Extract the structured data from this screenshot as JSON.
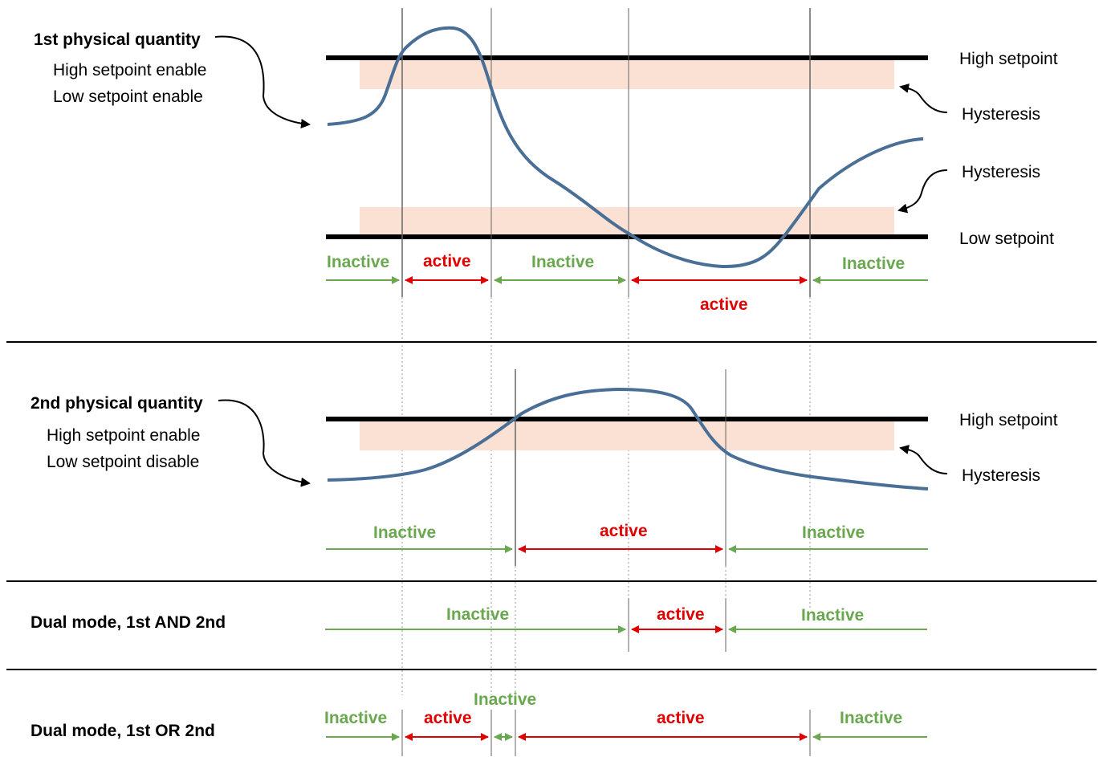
{
  "colors": {
    "curve": "#4a6f96",
    "hysteresis_band": "#fbe1d3",
    "setpoint_line": "#000000",
    "inactive": "#6aa84f",
    "active": "#e00000",
    "divider": "#000000",
    "guide": "#999999"
  },
  "section1": {
    "title": "1st physical quantity",
    "line1": "High setpoint enable",
    "line2": "Low setpoint enable",
    "high_setpoint": "High setpoint",
    "low_setpoint": "Low setpoint",
    "hysteresis_upper": "Hysteresis",
    "hysteresis_lower": "Hysteresis",
    "states": [
      "Inactive",
      "active",
      "Inactive",
      "active",
      "Inactive"
    ]
  },
  "section2": {
    "title": "2nd physical quantity",
    "line1": "High setpoint enable",
    "line2": "Low setpoint disable",
    "high_setpoint": "High setpoint",
    "hysteresis": "Hysteresis",
    "states": [
      "Inactive",
      "active",
      "Inactive"
    ]
  },
  "section3": {
    "title": "Dual mode, 1st AND 2nd",
    "states": [
      "Inactive",
      "active",
      "Inactive"
    ]
  },
  "section4": {
    "title": "Dual mode, 1st OR 2nd",
    "states": [
      "Inactive",
      "active",
      "Inactive",
      "active",
      "Inactive"
    ]
  }
}
